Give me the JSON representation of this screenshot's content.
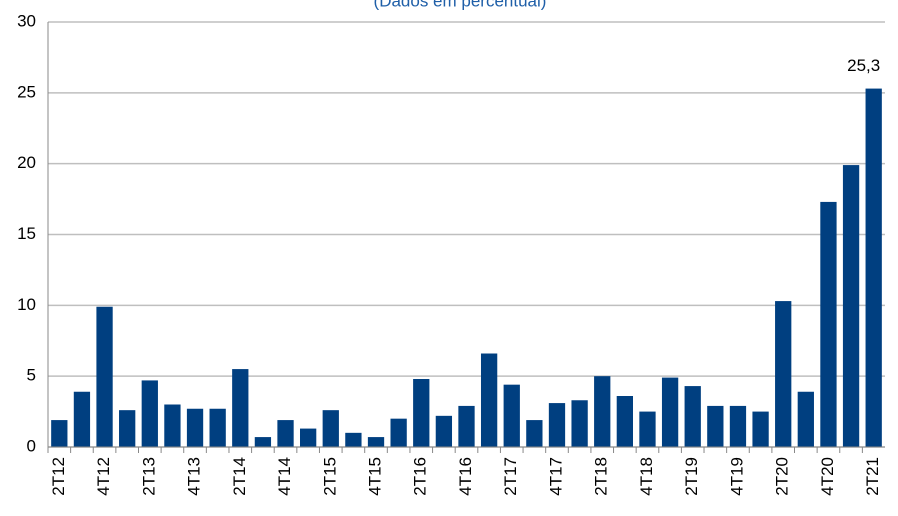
{
  "chart_data": {
    "type": "bar",
    "subtitle": "(Dados em percentual)",
    "categories": [
      "2T12",
      null,
      "4T12",
      null,
      "2T13",
      null,
      "4T13",
      null,
      "2T14",
      null,
      "4T14",
      null,
      "2T15",
      null,
      "4T15",
      null,
      "2T16",
      null,
      "4T16",
      null,
      "2T17",
      null,
      "4T17",
      null,
      "2T18",
      null,
      "4T18",
      null,
      "2T19",
      null,
      "4T19",
      null,
      "2T20",
      null,
      "4T20",
      null,
      "2T21"
    ],
    "values": [
      1.9,
      3.9,
      9.9,
      2.6,
      4.7,
      3.0,
      2.7,
      2.7,
      5.5,
      0.7,
      1.9,
      1.3,
      2.6,
      1.0,
      0.7,
      2.0,
      4.8,
      2.2,
      2.9,
      6.6,
      4.4,
      1.9,
      3.1,
      3.3,
      5.0,
      3.6,
      2.5,
      4.9,
      4.3,
      2.9,
      2.9,
      2.5,
      10.3,
      3.9,
      17.3,
      19.9,
      25.3
    ],
    "value_labels": [
      null,
      null,
      null,
      null,
      null,
      null,
      null,
      null,
      null,
      null,
      null,
      null,
      null,
      null,
      null,
      null,
      null,
      null,
      null,
      null,
      null,
      null,
      null,
      null,
      null,
      null,
      null,
      null,
      null,
      null,
      null,
      null,
      null,
      null,
      null,
      null,
      "25,3"
    ],
    "color": "#003f80",
    "ylim": [
      0,
      30
    ],
    "yticks": [
      0,
      5,
      10,
      15,
      20,
      25,
      30
    ],
    "grid": true
  }
}
